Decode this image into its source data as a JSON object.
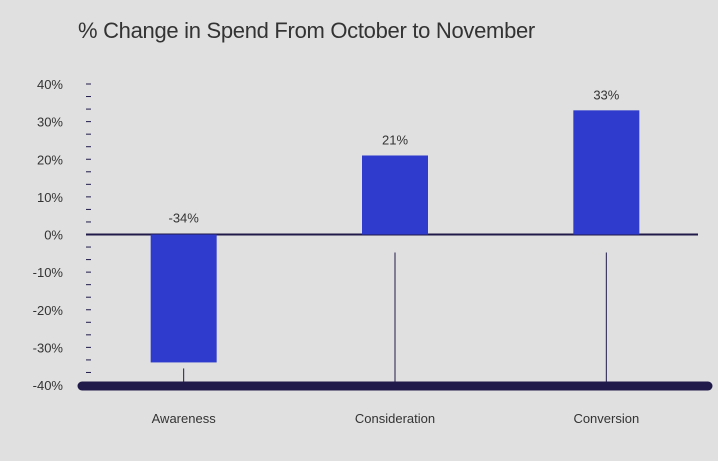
{
  "chart_data": {
    "type": "bar",
    "title": "% Change in Spend From October to November",
    "categories": [
      "Awareness",
      "Consideration",
      "Conversion"
    ],
    "values": [
      -34,
      21,
      33
    ],
    "value_labels": [
      "-34%",
      "21%",
      "33%"
    ],
    "yticks": [
      40,
      30,
      20,
      10,
      0,
      -10,
      -20,
      -30,
      -40
    ],
    "ytick_labels": [
      "40%",
      "30%",
      "20%",
      "10%",
      "0%",
      "-10%",
      "-20%",
      "-30%",
      "-40%"
    ],
    "ylim": [
      -40,
      40
    ],
    "xlabel": "",
    "ylabel": "",
    "grid": false,
    "colors": {
      "bar": "#2f3bcc",
      "axis": "#1f1a4a",
      "text": "#333333",
      "background": "#e0e0e0"
    }
  }
}
